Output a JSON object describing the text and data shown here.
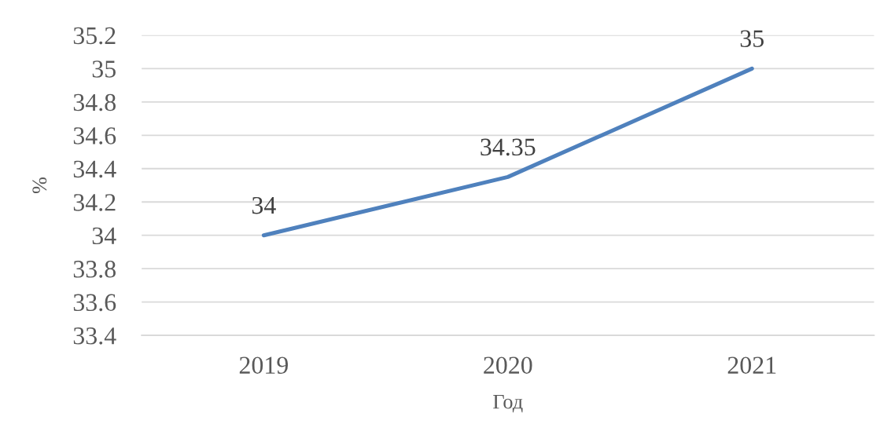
{
  "chart_data": {
    "type": "line",
    "xlabel": "Год",
    "ylabel": "%",
    "categories": [
      "2019",
      "2020",
      "2021"
    ],
    "series": [
      {
        "color": "#4f81bd",
        "values": [
          34,
          34.35,
          35
        ]
      }
    ],
    "ylim": [
      33.4,
      35.2
    ],
    "yticks": [
      33.4,
      33.6,
      33.8,
      34,
      34.2,
      34.4,
      34.6,
      34.8,
      35,
      35.2
    ],
    "grid": "y",
    "data_labels": true,
    "marker": "none",
    "line_style": "solid"
  }
}
